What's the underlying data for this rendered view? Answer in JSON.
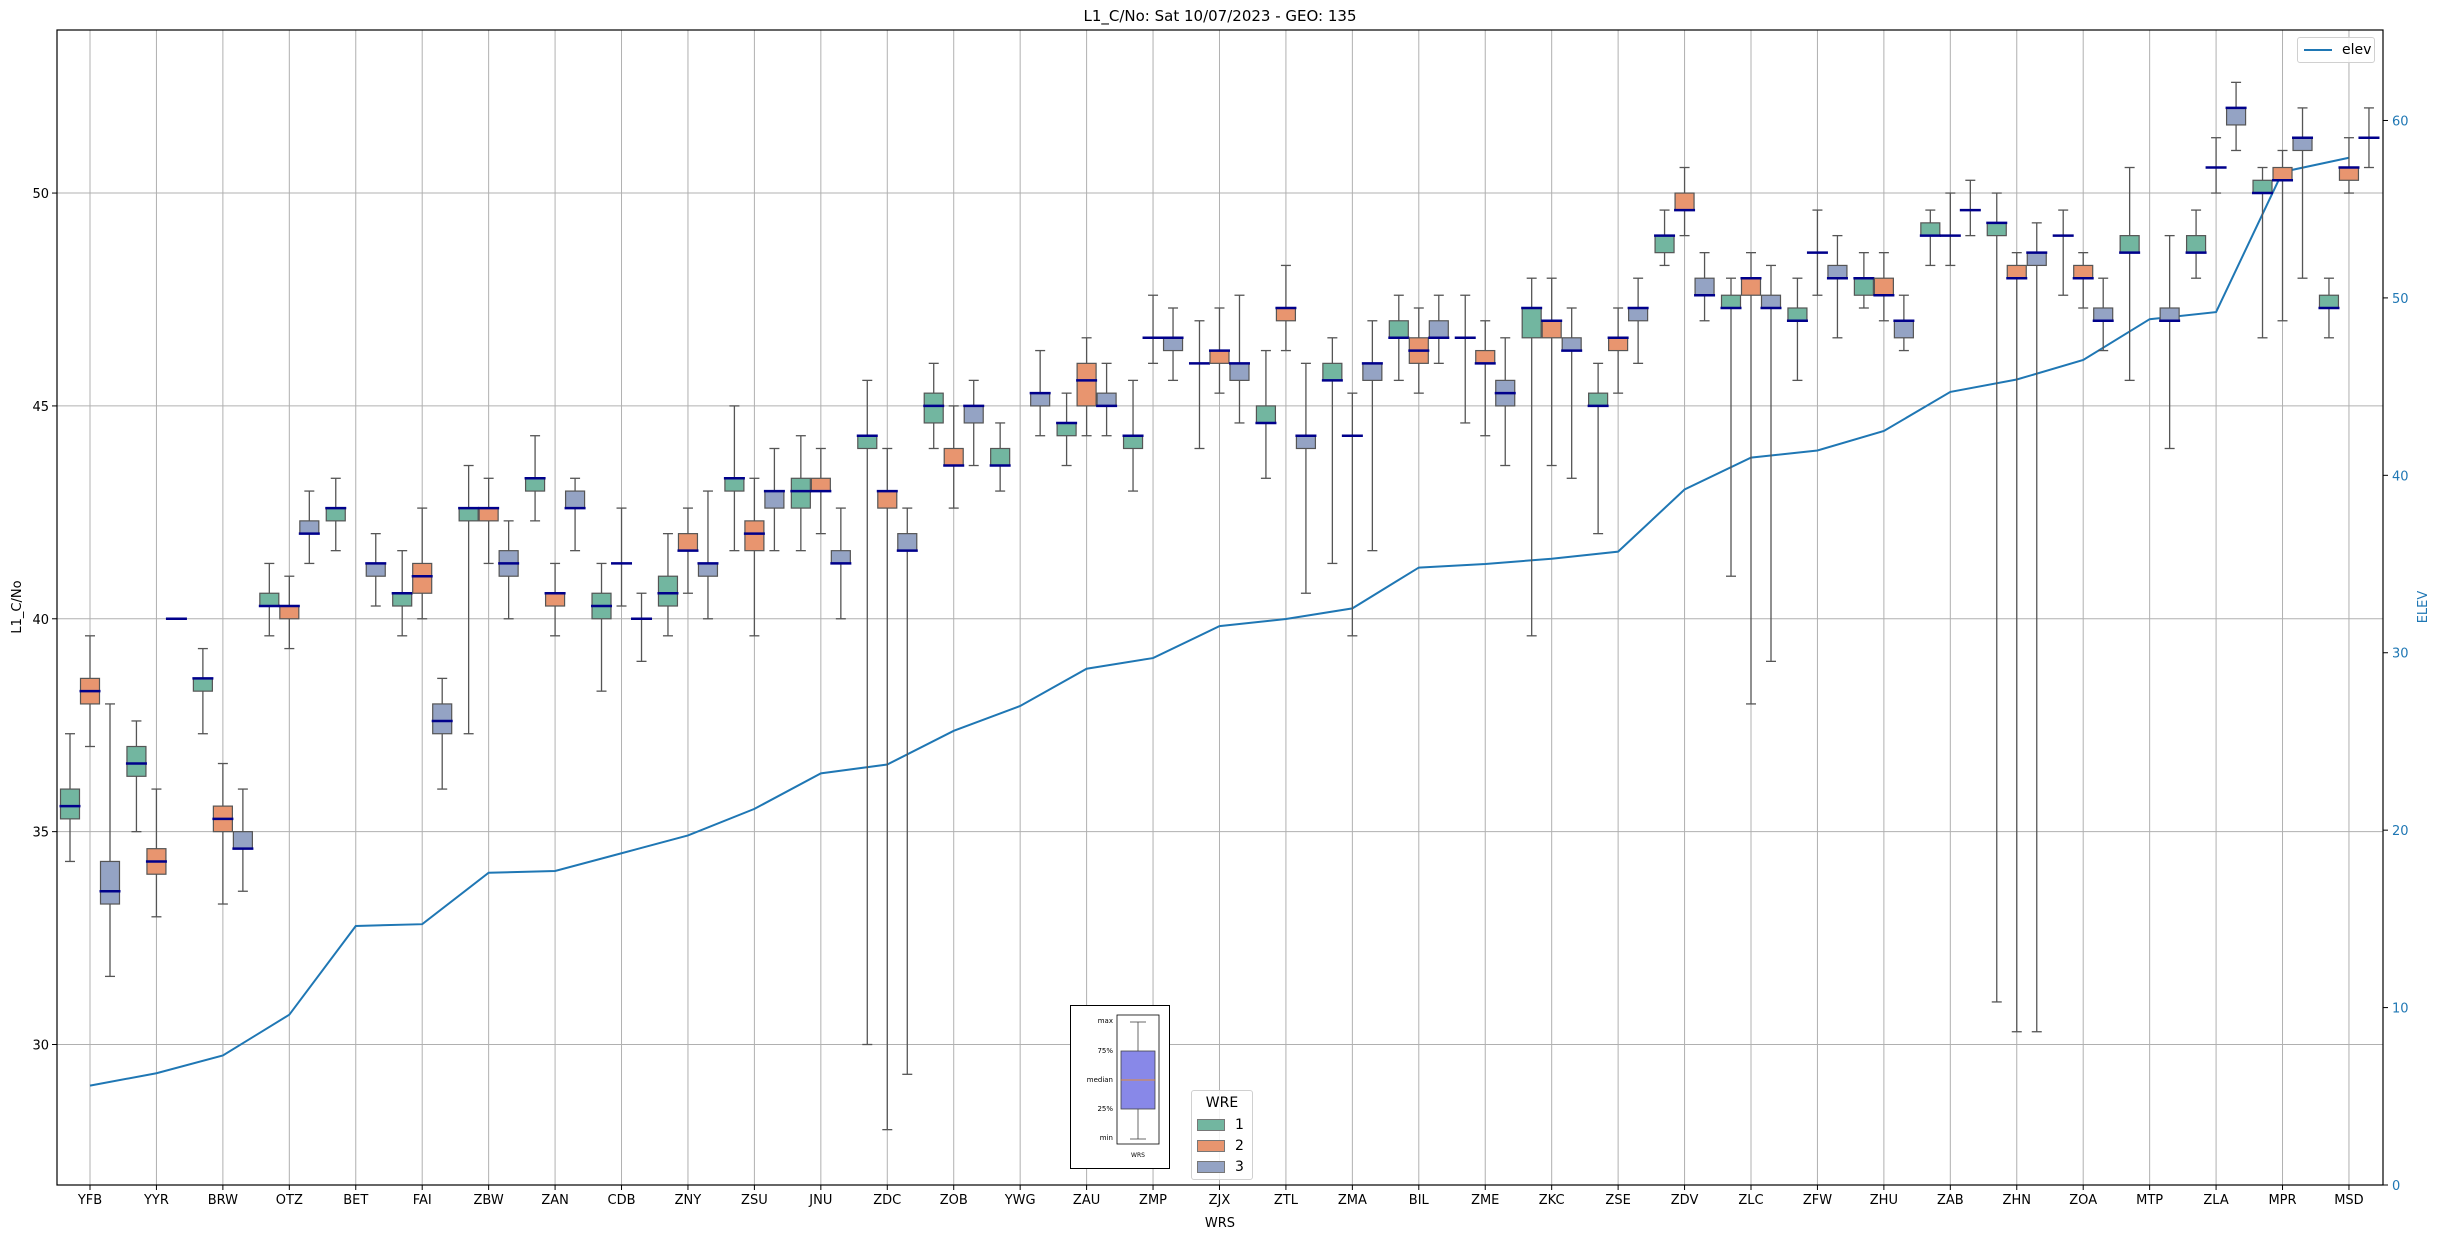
{
  "chart_data": {
    "type": "box",
    "title": "L1_C/No: Sat 10/07/2023 - GEO: 135",
    "xlabel": "WRS",
    "ylabel": "L1_C/No",
    "y2label": "ELEV",
    "ylim": [
      26.7,
      53.83
    ],
    "y2lim": [
      0,
      65.1
    ],
    "yticks": [
      "30",
      "35",
      "40",
      "45",
      "50"
    ],
    "y2ticks": [
      "0",
      "10",
      "20",
      "30",
      "40",
      "50",
      "60"
    ],
    "grid": true,
    "categories": [
      "YFB",
      "YYR",
      "BRW",
      "OTZ",
      "BET",
      "FAI",
      "ZBW",
      "ZAN",
      "CDB",
      "ZNY",
      "ZSU",
      "JNU",
      "ZDC",
      "ZOB",
      "YWG",
      "ZAU",
      "ZMP",
      "ZJX",
      "ZTL",
      "ZMA",
      "BIL",
      "ZME",
      "ZKC",
      "ZSE",
      "ZDV",
      "ZLC",
      "ZFW",
      "ZHU",
      "ZAB",
      "ZHN",
      "ZOA",
      "MTP",
      "ZLA",
      "MPR",
      "MSD"
    ],
    "box_stat_order": [
      "min",
      "q1",
      "median",
      "q3",
      "max"
    ],
    "series": [
      {
        "name": "1",
        "color": "#72b6a0",
        "boxes": [
          [
            34.3,
            35.3,
            35.6,
            36.0,
            37.3
          ],
          [
            35.0,
            36.3,
            36.6,
            37.0,
            37.6
          ],
          [
            37.3,
            38.3,
            38.6,
            38.6,
            39.3
          ],
          [
            39.6,
            40.3,
            40.3,
            40.6,
            41.3
          ],
          [
            41.6,
            42.3,
            42.6,
            42.6,
            43.3
          ],
          [
            39.6,
            40.3,
            40.6,
            40.6,
            41.6
          ],
          [
            37.3,
            42.3,
            42.6,
            42.6,
            43.6
          ],
          [
            42.3,
            43.0,
            43.3,
            43.3,
            44.3
          ],
          [
            38.3,
            40.0,
            40.3,
            40.6,
            41.3
          ],
          [
            39.6,
            40.3,
            40.6,
            41.0,
            42.0
          ],
          [
            41.6,
            43.0,
            43.3,
            43.3,
            45.0
          ],
          [
            41.6,
            42.6,
            43.0,
            43.3,
            44.3
          ],
          [
            30.0,
            44.0,
            44.3,
            44.3,
            45.6
          ],
          [
            44.0,
            44.6,
            45.0,
            45.3,
            46.0
          ],
          [
            43.0,
            43.6,
            43.6,
            44.0,
            44.6
          ],
          [
            43.6,
            44.3,
            44.6,
            44.6,
            45.3
          ],
          [
            43.0,
            44.0,
            44.3,
            44.3,
            45.6
          ],
          [
            44.0,
            46.0,
            46.0,
            46.0,
            47.0
          ],
          [
            43.3,
            44.6,
            44.6,
            45.0,
            46.3
          ],
          [
            41.3,
            45.6,
            45.6,
            46.0,
            46.6
          ],
          [
            45.6,
            46.6,
            46.6,
            47.0,
            47.6
          ],
          [
            44.6,
            46.6,
            46.6,
            46.6,
            47.6
          ],
          [
            39.6,
            46.6,
            47.3,
            47.3,
            48.0
          ],
          [
            42.0,
            45.0,
            45.0,
            45.3,
            46.0
          ],
          [
            48.3,
            48.6,
            49.0,
            49.0,
            49.6
          ],
          [
            41.0,
            47.3,
            47.3,
            47.6,
            48.0
          ],
          [
            45.6,
            47.0,
            47.0,
            47.3,
            48.0
          ],
          [
            47.3,
            47.6,
            48.0,
            48.0,
            48.6
          ],
          [
            48.3,
            49.0,
            49.0,
            49.3,
            49.6
          ],
          [
            31.0,
            49.0,
            49.3,
            49.3,
            50.0
          ],
          [
            47.6,
            49.0,
            49.0,
            49.0,
            49.6
          ],
          [
            45.6,
            48.6,
            48.6,
            49.0,
            50.6
          ],
          [
            48.0,
            48.6,
            48.6,
            49.0,
            49.6
          ],
          [
            46.6,
            50.0,
            50.0,
            50.3,
            50.6
          ],
          [
            46.6,
            47.3,
            47.3,
            47.6,
            48.0
          ]
        ]
      },
      {
        "name": "2",
        "color": "#e8956f",
        "boxes": [
          [
            37.0,
            38.0,
            38.3,
            38.6,
            39.6
          ],
          [
            33.0,
            34.0,
            34.3,
            34.6,
            36.0
          ],
          [
            33.3,
            35.0,
            35.3,
            35.6,
            36.6
          ],
          [
            39.3,
            40.0,
            40.3,
            40.3,
            41.0
          ],
          null,
          [
            40.0,
            40.6,
            41.0,
            41.3,
            42.6
          ],
          [
            41.3,
            42.3,
            42.6,
            42.6,
            43.3
          ],
          [
            39.6,
            40.3,
            40.6,
            40.6,
            41.3
          ],
          [
            40.3,
            41.3,
            41.3,
            41.3,
            42.6
          ],
          [
            40.6,
            41.6,
            41.6,
            42.0,
            42.6
          ],
          [
            39.6,
            41.6,
            42.0,
            42.3,
            43.3
          ],
          [
            42.0,
            43.0,
            43.0,
            43.3,
            44.0
          ],
          [
            28.0,
            42.6,
            43.0,
            43.0,
            44.0
          ],
          [
            42.6,
            43.6,
            43.6,
            44.0,
            45.0
          ],
          null,
          [
            44.3,
            45.0,
            45.6,
            46.0,
            46.6
          ],
          [
            46.0,
            46.6,
            46.6,
            46.6,
            47.6
          ],
          [
            45.3,
            46.0,
            46.3,
            46.3,
            47.3
          ],
          [
            46.3,
            47.0,
            47.3,
            47.3,
            48.3
          ],
          [
            39.6,
            44.3,
            44.3,
            44.3,
            45.3
          ],
          [
            45.3,
            46.0,
            46.3,
            46.6,
            47.3
          ],
          [
            44.3,
            46.0,
            46.0,
            46.3,
            47.0
          ],
          [
            43.6,
            46.6,
            47.0,
            47.0,
            48.0
          ],
          [
            45.3,
            46.3,
            46.6,
            46.6,
            47.3
          ],
          [
            49.0,
            49.6,
            49.6,
            50.0,
            50.6
          ],
          [
            38.0,
            47.6,
            48.0,
            48.0,
            48.6
          ],
          [
            47.6,
            48.6,
            48.6,
            48.6,
            49.6
          ],
          [
            47.0,
            47.6,
            47.6,
            48.0,
            48.6
          ],
          [
            48.3,
            49.0,
            49.0,
            49.0,
            50.0
          ],
          [
            30.3,
            48.0,
            48.0,
            48.3,
            48.6
          ],
          [
            47.3,
            48.0,
            48.0,
            48.3,
            48.6
          ],
          null,
          [
            50.0,
            50.6,
            50.6,
            50.6,
            51.3
          ],
          [
            47.0,
            50.3,
            50.3,
            50.6,
            51.0
          ],
          [
            50.0,
            50.3,
            50.6,
            50.6,
            51.3
          ]
        ]
      },
      {
        "name": "3",
        "color": "#94a3c4",
        "boxes": [
          [
            31.6,
            33.3,
            33.6,
            34.3,
            38.0
          ],
          [
            40.0,
            40.0,
            40.0,
            40.0,
            40.0
          ],
          [
            33.6,
            34.6,
            34.6,
            35.0,
            36.0
          ],
          [
            41.3,
            42.0,
            42.0,
            42.3,
            43.0
          ],
          [
            40.3,
            41.0,
            41.3,
            41.3,
            42.0
          ],
          [
            36.0,
            37.3,
            37.6,
            38.0,
            38.6
          ],
          [
            40.0,
            41.0,
            41.3,
            41.6,
            42.3
          ],
          [
            41.6,
            42.6,
            42.6,
            43.0,
            43.3
          ],
          [
            39.0,
            40.0,
            40.0,
            40.0,
            40.6
          ],
          [
            40.0,
            41.0,
            41.3,
            41.3,
            43.0
          ],
          [
            41.6,
            42.6,
            43.0,
            43.0,
            44.0
          ],
          [
            40.0,
            41.3,
            41.3,
            41.6,
            42.6
          ],
          [
            29.3,
            41.6,
            41.6,
            42.0,
            42.6
          ],
          [
            43.6,
            44.6,
            45.0,
            45.0,
            45.6
          ],
          [
            44.3,
            45.0,
            45.3,
            45.3,
            46.3
          ],
          [
            44.3,
            45.0,
            45.0,
            45.3,
            46.0
          ],
          [
            45.6,
            46.3,
            46.6,
            46.6,
            47.3
          ],
          [
            44.6,
            45.6,
            46.0,
            46.0,
            47.6
          ],
          [
            40.6,
            44.0,
            44.3,
            44.3,
            46.0
          ],
          [
            41.6,
            45.6,
            46.0,
            46.0,
            47.0
          ],
          [
            46.0,
            46.6,
            46.6,
            47.0,
            47.6
          ],
          [
            43.6,
            45.0,
            45.3,
            45.6,
            46.6
          ],
          [
            43.3,
            46.3,
            46.3,
            46.6,
            47.3
          ],
          [
            46.0,
            47.0,
            47.3,
            47.3,
            48.0
          ],
          [
            47.0,
            47.6,
            47.6,
            48.0,
            48.6
          ],
          [
            39.0,
            47.3,
            47.3,
            47.6,
            48.3
          ],
          [
            46.6,
            48.0,
            48.0,
            48.3,
            49.0
          ],
          [
            46.3,
            46.6,
            47.0,
            47.0,
            47.6
          ],
          [
            49.0,
            49.6,
            49.6,
            49.6,
            50.3
          ],
          [
            30.3,
            48.3,
            48.6,
            48.6,
            49.3
          ],
          [
            46.3,
            47.0,
            47.0,
            47.3,
            48.0
          ],
          [
            44.0,
            47.0,
            47.0,
            47.3,
            49.0
          ],
          [
            51.0,
            51.6,
            52.0,
            52.0,
            52.6
          ],
          [
            48.0,
            51.0,
            51.3,
            51.3,
            52.0
          ],
          [
            50.6,
            51.3,
            51.3,
            51.3,
            52.0
          ]
        ]
      }
    ],
    "elev": {
      "name": "elev",
      "color": "#1f77b4",
      "values": [
        5.6,
        6.3,
        7.3,
        9.6,
        14.6,
        14.7,
        17.6,
        17.7,
        18.7,
        19.7,
        21.2,
        23.2,
        23.7,
        25.6,
        27.0,
        29.1,
        29.7,
        31.5,
        31.9,
        32.5,
        34.8,
        35.0,
        35.3,
        35.7,
        39.2,
        41.0,
        41.4,
        42.5,
        44.7,
        45.4,
        46.5,
        48.8,
        49.2,
        57.1,
        57.9
      ]
    },
    "median_color": "#00008b",
    "legend": {
      "title": "WRE",
      "placement": "bottom-center",
      "elev_placement": "top-right"
    },
    "inset_key": {
      "labels": [
        "max",
        "75%",
        "median",
        "25%",
        "min"
      ],
      "xlabel": "WRS",
      "box_color": "#8888e8",
      "median_color": "#ff8c00"
    }
  }
}
